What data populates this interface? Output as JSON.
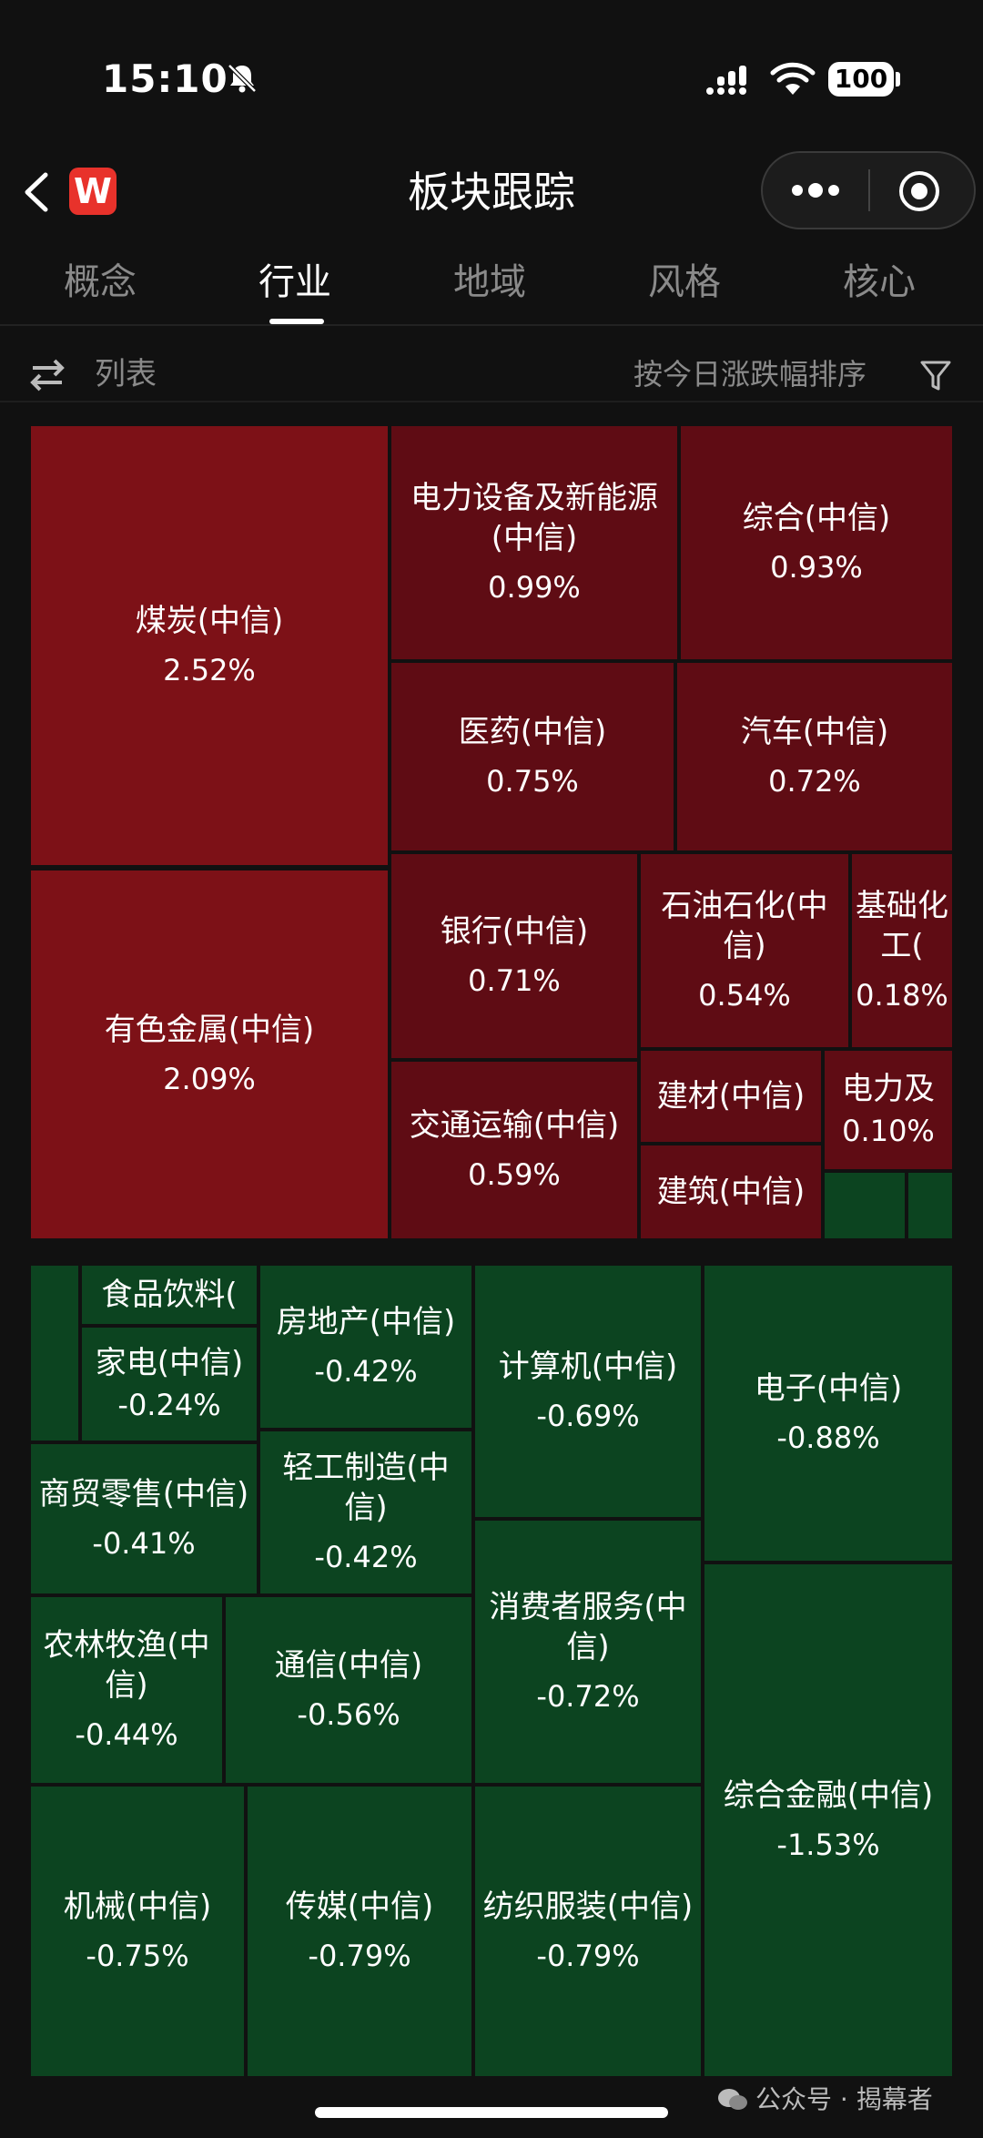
{
  "status": {
    "time": "15:10",
    "battery": "100"
  },
  "nav": {
    "title": "板块跟踪",
    "logo_letter": "W"
  },
  "tabs": [
    "概念",
    "行业",
    "地域",
    "风格",
    "核心"
  ],
  "toolbar": {
    "list_label": "列表",
    "sort_label": "按今日涨跌幅排序"
  },
  "colors": {
    "up_strong": "#7d1117",
    "up": "#5f0c14",
    "down": "#0c4420"
  },
  "sectors": [
    {
      "name": "煤炭(中信)",
      "change": "2.52%"
    },
    {
      "name": "有色金属(中信)",
      "change": "2.09%"
    },
    {
      "name": "电力设备及新能源(中信)",
      "change": "0.99%"
    },
    {
      "name": "综合(中信)",
      "change": "0.93%"
    },
    {
      "name": "医药(中信)",
      "change": "0.75%"
    },
    {
      "name": "汽车(中信)",
      "change": "0.72%"
    },
    {
      "name": "银行(中信)",
      "change": "0.71%"
    },
    {
      "name": "石油石化(中信)",
      "change": "0.54%"
    },
    {
      "name": "基础化工(",
      "change": "0.18%"
    },
    {
      "name": "交通运输(中信)",
      "change": "0.59%"
    },
    {
      "name": "建材(中信)",
      "change": ""
    },
    {
      "name": "电力及",
      "change": "0.10%"
    },
    {
      "name": "建筑(中信)",
      "change": ""
    },
    {
      "name": "食品饮料(",
      "change": ""
    },
    {
      "name": "家电(中信)",
      "change": "-0.24%"
    },
    {
      "name": "房地产(中信)",
      "change": "-0.42%"
    },
    {
      "name": "计算机(中信)",
      "change": "-0.69%"
    },
    {
      "name": "电子(中信)",
      "change": "-0.88%"
    },
    {
      "name": "商贸零售(中信)",
      "change": "-0.41%"
    },
    {
      "name": "轻工制造(中信)",
      "change": "-0.42%"
    },
    {
      "name": "消费者服务(中信)",
      "change": "-0.72%"
    },
    {
      "name": "农林牧渔(中信)",
      "change": "-0.44%"
    },
    {
      "name": "通信(中信)",
      "change": "-0.56%"
    },
    {
      "name": "综合金融(中信)",
      "change": "-1.53%"
    },
    {
      "name": "机械(中信)",
      "change": "-0.75%"
    },
    {
      "name": "传媒(中信)",
      "change": "-0.79%"
    },
    {
      "name": "纺织服装(中信)",
      "change": "-0.79%"
    }
  ],
  "watermark": "公众号 · 揭幕者"
}
